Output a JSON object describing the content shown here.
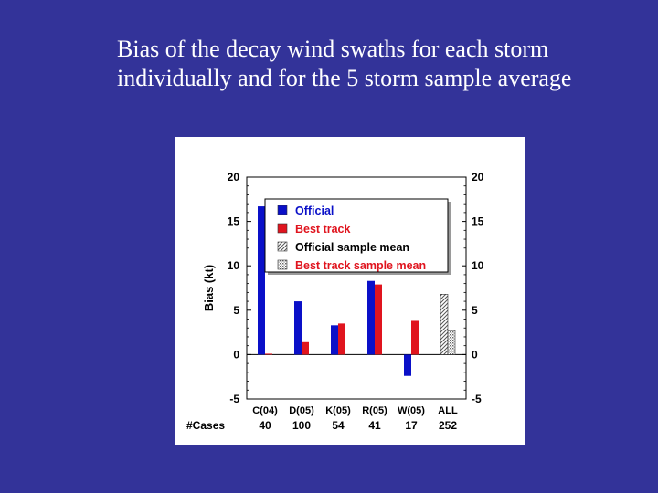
{
  "slide": {
    "title_line1": "Bias of the decay wind swaths for each storm",
    "title_line2": "individually and for the 5 storm sample average"
  },
  "chart_data": {
    "type": "bar",
    "title": "",
    "xlabel": "",
    "ylabel": "Bias (kt)",
    "ylim": [
      -5,
      20
    ],
    "yticks": [
      -5,
      0,
      5,
      10,
      15,
      20
    ],
    "categories": [
      "C(04)",
      "D(05)",
      "K(05)",
      "R(05)",
      "W(05)",
      "ALL"
    ],
    "cases_label": "#Cases",
    "cases": [
      "40",
      "100",
      "54",
      "41",
      "17",
      "252"
    ],
    "legend_position": "top",
    "series": [
      {
        "name": "Official",
        "color": "#0a10c8",
        "values": [
          16.7,
          6.0,
          3.3,
          8.3,
          -2.4,
          null
        ]
      },
      {
        "name": "Best track",
        "color": "#e0141e",
        "values": [
          0.1,
          1.4,
          3.5,
          7.9,
          3.8,
          null
        ]
      },
      {
        "name": "Official sample mean",
        "pattern": "hatch",
        "values": [
          null,
          null,
          null,
          null,
          null,
          6.8
        ]
      },
      {
        "name": "Best track sample mean",
        "pattern": "dots",
        "values": [
          null,
          null,
          null,
          null,
          null,
          2.7
        ]
      }
    ]
  }
}
